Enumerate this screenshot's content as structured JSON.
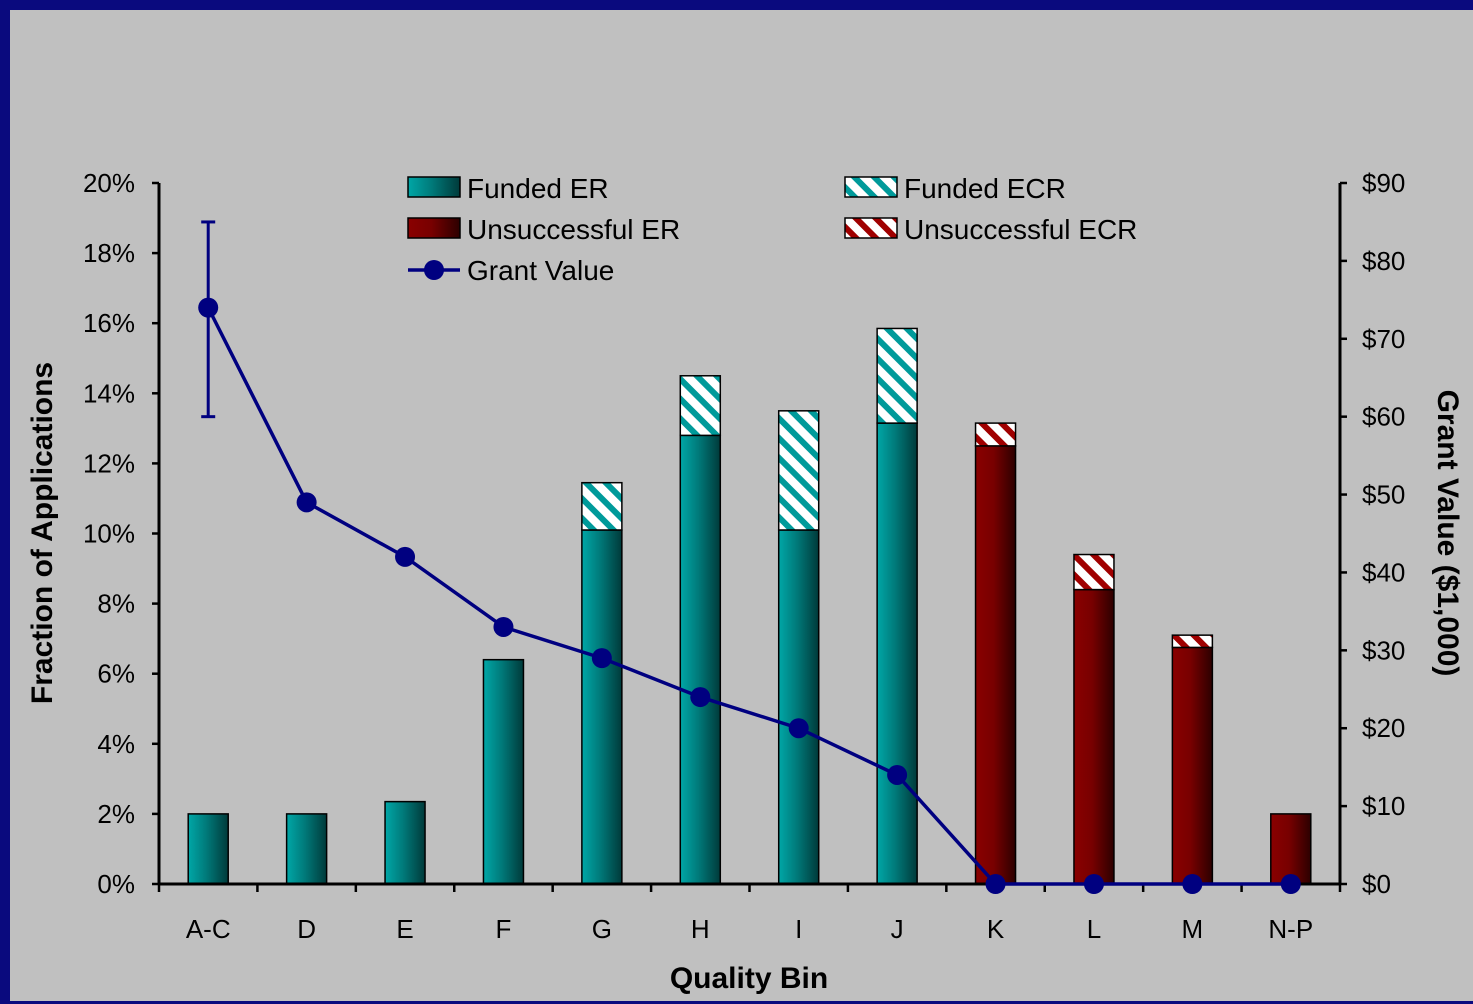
{
  "chart_data": {
    "type": "bar",
    "stacked": true,
    "xlabel": "Quality Bin",
    "ylabel": "Fraction of Applications",
    "y2label": "Grant Value ($1,000)",
    "ylim": [
      0,
      20
    ],
    "y2lim": [
      0,
      90
    ],
    "yticks": [
      "0%",
      "2%",
      "4%",
      "6%",
      "8%",
      "10%",
      "12%",
      "14%",
      "16%",
      "18%",
      "20%"
    ],
    "y2ticks": [
      "$0",
      "$10",
      "$20",
      "$30",
      "$40",
      "$50",
      "$60",
      "$70",
      "$80",
      "$90"
    ],
    "categories": [
      "A-C",
      "D",
      "E",
      "F",
      "G",
      "H",
      "I",
      "J",
      "K",
      "L",
      "M",
      "N-P"
    ],
    "series": [
      {
        "name": "Funded ER",
        "kind": "bar",
        "color": "#008080",
        "pattern": "solid",
        "values": [
          2.0,
          2.0,
          2.35,
          6.4,
          10.1,
          12.8,
          10.1,
          13.15,
          0,
          0,
          0,
          0
        ]
      },
      {
        "name": "Funded ECR",
        "kind": "bar",
        "color": "#008080",
        "pattern": "hatch",
        "values": [
          0,
          0,
          0,
          0,
          1.35,
          1.7,
          3.4,
          2.7,
          0,
          0,
          0,
          0
        ]
      },
      {
        "name": "Unsuccessful ER",
        "kind": "bar",
        "color": "#800000",
        "pattern": "solid",
        "values": [
          0,
          0,
          0,
          0,
          0,
          0,
          0,
          0,
          12.5,
          8.4,
          6.75,
          2.0
        ]
      },
      {
        "name": "Unsuccessful ECR",
        "kind": "bar",
        "color": "#800000",
        "pattern": "hatch",
        "values": [
          0,
          0,
          0,
          0,
          0,
          0,
          0,
          0,
          0.65,
          1.0,
          0.35,
          0
        ]
      },
      {
        "name": "Grant Value",
        "kind": "line",
        "axis": "y2",
        "color": "#000080",
        "values": [
          74,
          49,
          42,
          33,
          29,
          24,
          20,
          14,
          0,
          0,
          0,
          0
        ],
        "error_bar": {
          "index": 0,
          "low": 60,
          "high": 85
        }
      }
    ],
    "legend": "top-center",
    "grid": false
  }
}
